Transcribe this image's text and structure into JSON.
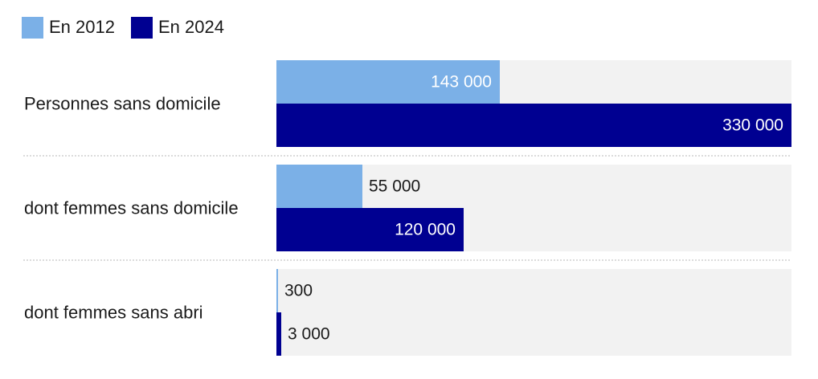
{
  "chart_data": {
    "type": "bar",
    "orientation": "horizontal",
    "categories": [
      "Personnes sans domicile",
      "dont femmes sans domicile",
      "dont femmes sans abri"
    ],
    "series": [
      {
        "name": "En 2012",
        "values": [
          143000,
          55000,
          300
        ],
        "labels": [
          "143 000",
          "55 000",
          "300"
        ],
        "color": "#7bb0e7"
      },
      {
        "name": "En 2024",
        "values": [
          330000,
          120000,
          3000
        ],
        "labels": [
          "330 000",
          "120 000",
          "3 000"
        ],
        "color": "#000091"
      }
    ],
    "xlim": [
      0,
      330000
    ],
    "legend": "top-left",
    "grid": false,
    "track_color": "#f2f2f2",
    "separator_color": "#cfcfcf"
  }
}
